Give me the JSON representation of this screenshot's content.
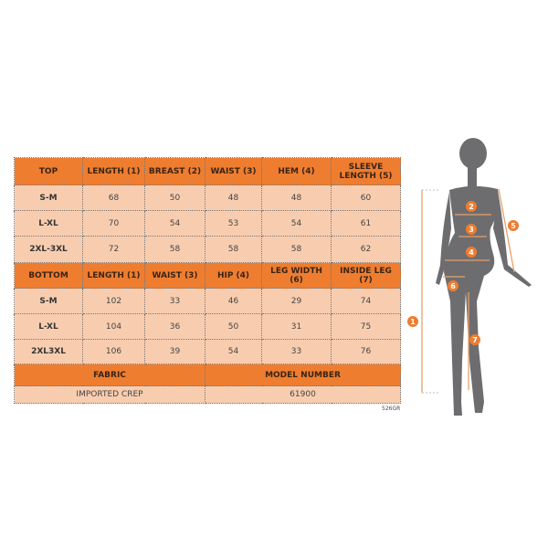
{
  "top": {
    "headers": [
      "TOP",
      "LENGTH (1)",
      "BREAST (2)",
      "WAIST (3)",
      "HEM (4)",
      "SLEEVE LENGTH (5)"
    ],
    "rows": [
      [
        "S-M",
        "68",
        "50",
        "48",
        "48",
        "60"
      ],
      [
        "L-XL",
        "70",
        "54",
        "53",
        "54",
        "61"
      ],
      [
        "2XL-3XL",
        "72",
        "58",
        "58",
        "58",
        "62"
      ]
    ]
  },
  "bottom": {
    "headers": [
      "BOTTOM",
      "LENGTH (1)",
      "WAIST (3)",
      "HIP (4)",
      "LEG WIDTH (6)",
      "INSIDE LEG (7)"
    ],
    "rows": [
      [
        "S-M",
        "102",
        "33",
        "46",
        "29",
        "74"
      ],
      [
        "L-XL",
        "104",
        "36",
        "50",
        "31",
        "75"
      ],
      [
        "2XL3XL",
        "106",
        "39",
        "54",
        "33",
        "76"
      ]
    ]
  },
  "info": {
    "fabric_label": "FABRIC",
    "model_label": "MODEL NUMBER",
    "fabric": "IMPORTED CREP",
    "model": "61900"
  },
  "code": "526GR",
  "figure": {
    "markers": [
      "1",
      "2",
      "3",
      "4",
      "5",
      "6",
      "7"
    ]
  },
  "colors": {
    "header": "#ee7d30",
    "cell": "#f8cdaf",
    "silhouette": "#6d6d6f",
    "arrow": "#e8a06a"
  }
}
